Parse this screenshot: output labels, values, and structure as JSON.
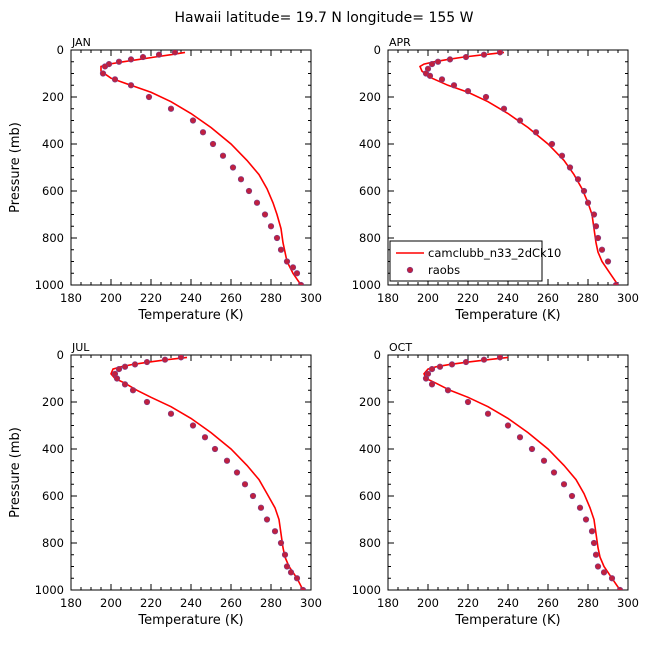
{
  "title": "Hawaii   latitude= 19.7 N longitude= 155 W",
  "colors": {
    "model": "#ff0000",
    "obs": "#c0203f",
    "obs_stroke": "#7a3f8a",
    "axis": "#000000"
  },
  "legend": {
    "model_label": "camclubb_n33_2dCk10",
    "obs_label": "raobs",
    "panel": 1,
    "placement": "lower-left"
  },
  "xlabel": "Temperature (K)",
  "ylabel": "Pressure (mb)",
  "chart_data": [
    {
      "type": "line",
      "panel_label": "JAN",
      "xlim": [
        180,
        300
      ],
      "ylim": [
        1000,
        0
      ],
      "xticks": [
        180,
        200,
        220,
        240,
        260,
        280,
        300
      ],
      "yticks": [
        0,
        200,
        400,
        600,
        800,
        1000
      ],
      "series": [
        {
          "name": "camclubb_n33_2dCk10",
          "style": "line",
          "x": [
            237,
            230,
            222,
            214,
            206,
            199,
            195,
            195,
            200,
            210,
            220,
            230,
            240,
            250,
            260,
            268,
            274,
            278,
            281,
            283,
            285,
            286,
            287,
            288,
            291,
            295
          ],
          "y": [
            10,
            20,
            30,
            40,
            50,
            60,
            70,
            90,
            120,
            150,
            180,
            220,
            270,
            330,
            400,
            470,
            530,
            590,
            650,
            700,
            760,
            820,
            860,
            900,
            950,
            1000
          ]
        },
        {
          "name": "raobs",
          "style": "points",
          "x": [
            232,
            224,
            216,
            210,
            204,
            199,
            197,
            196,
            202,
            210,
            219,
            230,
            241,
            246,
            251,
            256,
            261,
            265,
            269,
            273,
            277,
            280,
            283,
            285,
            288,
            291,
            293,
            295
          ],
          "y": [
            10,
            20,
            30,
            40,
            50,
            60,
            70,
            100,
            125,
            150,
            200,
            250,
            300,
            350,
            400,
            450,
            500,
            550,
            600,
            650,
            700,
            750,
            800,
            850,
            900,
            925,
            950,
            1000
          ]
        }
      ]
    },
    {
      "type": "line",
      "panel_label": "APR",
      "xlim": [
        180,
        300
      ],
      "ylim": [
        1000,
        0
      ],
      "xticks": [
        180,
        200,
        220,
        240,
        260,
        280,
        300
      ],
      "yticks": [
        0,
        200,
        400,
        600,
        800,
        1000
      ],
      "series": [
        {
          "name": "camclubb_n33_2dCk10",
          "style": "line",
          "x": [
            238,
            228,
            218,
            210,
            203,
            198,
            196,
            197,
            202,
            210,
            220,
            230,
            240,
            250,
            260,
            268,
            273,
            277,
            280,
            282,
            283,
            284,
            285,
            287,
            291,
            295
          ],
          "y": [
            10,
            20,
            30,
            40,
            50,
            60,
            70,
            90,
            120,
            150,
            180,
            220,
            270,
            330,
            400,
            470,
            530,
            590,
            650,
            700,
            760,
            820,
            860,
            900,
            950,
            1000
          ]
        },
        {
          "name": "raobs",
          "style": "points",
          "x": [
            236,
            228,
            219,
            211,
            205,
            202,
            200,
            199,
            201,
            207,
            213,
            220,
            229,
            238,
            246,
            254,
            262,
            267,
            271,
            275,
            278,
            280,
            283,
            284,
            285,
            287,
            290,
            294
          ],
          "y": [
            10,
            20,
            30,
            40,
            50,
            60,
            80,
            100,
            110,
            125,
            150,
            175,
            200,
            250,
            300,
            350,
            400,
            450,
            500,
            550,
            600,
            650,
            700,
            750,
            800,
            850,
            900,
            1000
          ]
        }
      ]
    },
    {
      "type": "line",
      "panel_label": "JUL",
      "xlim": [
        180,
        300
      ],
      "ylim": [
        1000,
        0
      ],
      "xticks": [
        180,
        200,
        220,
        240,
        260,
        280,
        300
      ],
      "yticks": [
        0,
        200,
        400,
        600,
        800,
        1000
      ],
      "series": [
        {
          "name": "camclubb_n33_2dCk10",
          "style": "line",
          "x": [
            238,
            228,
            219,
            211,
            205,
            201,
            200,
            202,
            207,
            213,
            220,
            230,
            240,
            250,
            260,
            268,
            274,
            278,
            282,
            284,
            285,
            286,
            287,
            289,
            293,
            296
          ],
          "y": [
            10,
            20,
            30,
            40,
            50,
            60,
            80,
            100,
            120,
            150,
            180,
            220,
            270,
            330,
            400,
            470,
            530,
            590,
            650,
            700,
            760,
            820,
            860,
            900,
            950,
            1000
          ]
        },
        {
          "name": "raobs",
          "style": "points",
          "x": [
            235,
            227,
            218,
            212,
            207,
            204,
            202,
            203,
            207,
            211,
            218,
            230,
            241,
            247,
            252,
            258,
            263,
            267,
            271,
            275,
            278,
            282,
            285,
            287,
            288,
            290,
            293,
            296
          ],
          "y": [
            10,
            20,
            30,
            40,
            50,
            60,
            80,
            100,
            125,
            150,
            200,
            250,
            300,
            350,
            400,
            450,
            500,
            550,
            600,
            650,
            700,
            750,
            800,
            850,
            900,
            925,
            950,
            1000
          ]
        }
      ]
    },
    {
      "type": "line",
      "panel_label": "OCT",
      "xlim": [
        180,
        300
      ],
      "ylim": [
        1000,
        0
      ],
      "xticks": [
        180,
        200,
        220,
        240,
        260,
        280,
        300
      ],
      "yticks": [
        0,
        200,
        400,
        600,
        800,
        1000
      ],
      "series": [
        {
          "name": "camclubb_n33_2dCk10",
          "style": "line",
          "x": [
            240,
            230,
            220,
            211,
            204,
            200,
            198,
            199,
            204,
            211,
            220,
            230,
            240,
            250,
            260,
            268,
            274,
            278,
            281,
            283,
            284,
            285,
            286,
            288,
            292,
            296
          ],
          "y": [
            10,
            20,
            30,
            40,
            50,
            60,
            80,
            100,
            120,
            150,
            180,
            220,
            270,
            330,
            400,
            470,
            530,
            590,
            650,
            700,
            760,
            820,
            860,
            900,
            950,
            1000
          ]
        },
        {
          "name": "raobs",
          "style": "points",
          "x": [
            236,
            228,
            219,
            212,
            206,
            202,
            200,
            199,
            202,
            210,
            220,
            230,
            240,
            246,
            252,
            258,
            263,
            268,
            272,
            276,
            279,
            282,
            283,
            284,
            285,
            288,
            292,
            296
          ],
          "y": [
            10,
            20,
            30,
            40,
            50,
            60,
            80,
            100,
            125,
            150,
            200,
            250,
            300,
            350,
            400,
            450,
            500,
            550,
            600,
            650,
            700,
            750,
            800,
            850,
            900,
            925,
            950,
            1000
          ]
        }
      ]
    }
  ]
}
